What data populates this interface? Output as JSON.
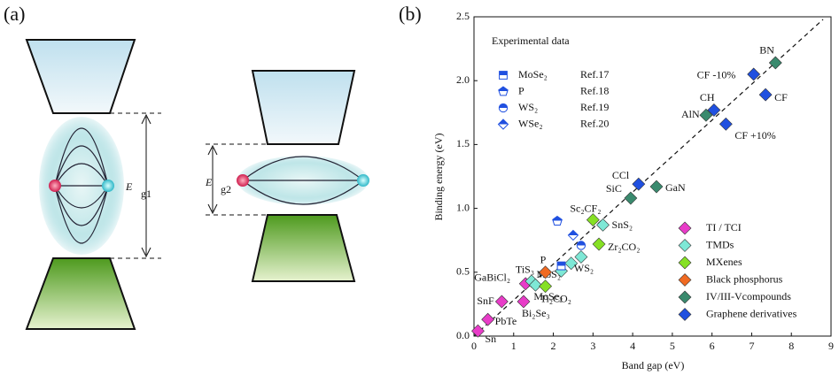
{
  "panel_a": {
    "label": "(a)",
    "gap1": {
      "symbol": "E",
      "sub": "g1"
    },
    "gap2": {
      "symbol": "E",
      "sub": "g2"
    }
  },
  "chart_data": {
    "type": "scatter",
    "panel_label": "(b)",
    "x_label": "Band gap (eV)",
    "y_label": "Binding energy (eV)",
    "xlim": [
      0,
      9
    ],
    "ylim": [
      0,
      2.5
    ],
    "xticks": [
      0,
      1,
      2,
      3,
      4,
      5,
      6,
      7,
      8,
      9
    ],
    "yticks": [
      {
        "value": 0,
        "label": "0.0"
      },
      0.5,
      {
        "value": 1,
        "label": "1.0"
      },
      1.5,
      {
        "value": 2,
        "label": "2.0"
      },
      2.5
    ],
    "fit_line": {
      "x": [
        0,
        8.8
      ],
      "y": [
        0,
        2.48
      ]
    },
    "experimental_title": "Experimental data",
    "series": [
      {
        "name": "TI / TCI",
        "color": "#e83cc8",
        "marker": "diamond",
        "x": [
          0.1,
          0.35,
          0.7,
          1.25,
          1.3
        ],
        "values": [
          0.04,
          0.13,
          0.27,
          0.27,
          0.41
        ],
        "labels": [
          "Sn",
          "PbTe",
          "SnF",
          "Bi₂Se₃",
          "GaBiCl₂"
        ]
      },
      {
        "name": "TMDs",
        "color": "#7ee8d6",
        "marker": "diamond",
        "x": [
          1.45,
          1.55,
          2.2,
          2.45,
          2.7,
          3.25
        ],
        "values": [
          0.43,
          0.4,
          0.51,
          0.57,
          0.62,
          0.87
        ],
        "labels": [
          "TiS₃",
          "MoSe₂",
          "MoS₂",
          null,
          "WS₂",
          "SnS₂"
        ]
      },
      {
        "name": "MXenes",
        "color": "#86e024",
        "marker": "diamond",
        "x": [
          1.8,
          3.0,
          3.15
        ],
        "values": [
          0.39,
          0.91,
          0.72
        ],
        "labels": [
          "Ti₂CO₂",
          "Sc₂CF₂",
          "Zr₂CO₂"
        ]
      },
      {
        "name": "Black phosphorus",
        "color": "#f06a22",
        "marker": "diamond",
        "x": [
          1.8
        ],
        "values": [
          0.5
        ],
        "labels": [
          "P"
        ]
      },
      {
        "name": "IV/III-Vcompounds",
        "color": "#3a8a6e",
        "marker": "diamond",
        "x": [
          3.95,
          4.6,
          5.85,
          7.6
        ],
        "values": [
          1.08,
          1.17,
          1.73,
          2.14
        ],
        "labels": [
          "SiC",
          "GaN",
          "AlN",
          "BN"
        ]
      },
      {
        "name": "Graphene derivatives",
        "color": "#2050e0",
        "marker": "diamond",
        "x": [
          4.15,
          6.05,
          6.35,
          7.05,
          7.35
        ],
        "values": [
          1.19,
          1.77,
          1.66,
          2.05,
          1.89
        ],
        "labels": [
          "CCl",
          "CH",
          "CF +10%",
          "CF -10%",
          "CF"
        ]
      }
    ],
    "experimental": [
      {
        "name": "MoSe₂",
        "ref": "Ref.17",
        "color": "#2050e0",
        "marker": "square",
        "x": [
          2.2
        ],
        "values": [
          0.55
        ]
      },
      {
        "name": "P",
        "ref": "Ref.18",
        "color": "#2050e0",
        "marker": "pentagon",
        "x": [
          2.1
        ],
        "values": [
          0.9
        ]
      },
      {
        "name": "WS₂",
        "ref": "Ref.19",
        "color": "#2050e0",
        "marker": "circle",
        "x": [
          2.7
        ],
        "values": [
          0.71
        ]
      },
      {
        "name": "WSe₂",
        "ref": "Ref.20",
        "color": "#2050e0",
        "marker": "diamond",
        "x": [
          2.5
        ],
        "values": [
          0.79
        ]
      }
    ]
  }
}
